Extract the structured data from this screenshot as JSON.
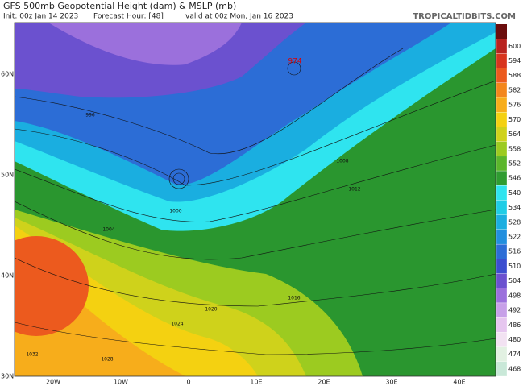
{
  "header": {
    "title": "GFS 500mb Geopotential Height (dam) & MSLP (mb)",
    "init": "Init: 00z Jan 14 2023",
    "forecast_hour": "Forecast Hour: [48]",
    "valid": "valid at 00z Mon, Jan 16 2023",
    "site": "TROPICALTIDBITS.COM"
  },
  "map": {
    "lat_labels": [
      "60N",
      "50N",
      "40N",
      "30N"
    ],
    "lon_labels": [
      "20W",
      "10W",
      "0",
      "10E",
      "20E",
      "30E",
      "40E"
    ],
    "pressure_labels": [
      "974",
      "996",
      "1000",
      "1004",
      "1008",
      "1012",
      "1016",
      "1020",
      "1024",
      "1028",
      "1032"
    ]
  },
  "colorbar": {
    "levels": [
      600,
      594,
      588,
      582,
      576,
      570,
      564,
      558,
      552,
      546,
      540,
      534,
      528,
      522,
      516,
      510,
      504,
      498,
      492,
      486,
      480,
      474,
      468
    ],
    "colors": [
      "#b8231f",
      "#d8351e",
      "#ec5a1e",
      "#f3861c",
      "#f7ad1b",
      "#f4d111",
      "#cfd21b",
      "#9ccb20",
      "#5bb62b",
      "#2f9c31",
      "#2fe4ef",
      "#1fcde6",
      "#1aaee0",
      "#228fde",
      "#2c6dd6",
      "#3b4ecf",
      "#6b51cf",
      "#9b70dc",
      "#c7a0e8",
      "#e6c6ef",
      "#f2e2f2",
      "#e2f1e2",
      "#c9e8d8"
    ]
  }
}
